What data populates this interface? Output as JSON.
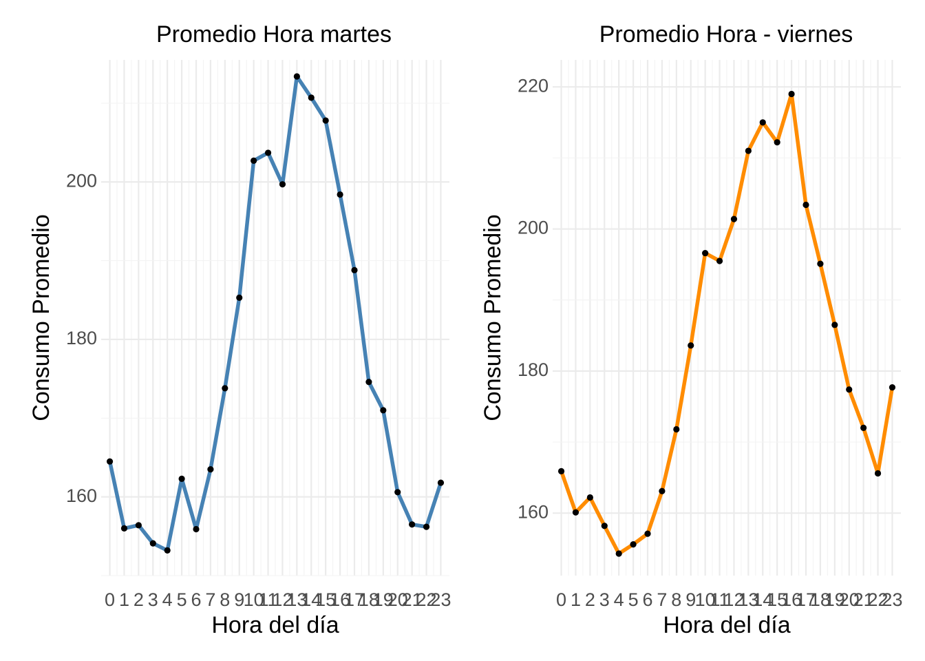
{
  "chart_data": [
    {
      "type": "line",
      "title": "Promedio Hora martes",
      "xlabel": "Hora del día",
      "ylabel": "Consumo Promedio",
      "x": [
        0,
        1,
        2,
        3,
        4,
        5,
        6,
        7,
        8,
        9,
        10,
        11,
        12,
        13,
        14,
        15,
        16,
        17,
        18,
        19,
        20,
        21,
        22,
        23
      ],
      "x_tick_labels": [
        "0",
        "1",
        "2",
        "3",
        "4",
        "5",
        "6",
        "7",
        "8",
        "9",
        "10",
        "11",
        "12",
        "13",
        "14",
        "15",
        "16",
        "17",
        "18",
        "19",
        "20",
        "21",
        "22",
        "23"
      ],
      "values": [
        164.5,
        156.0,
        156.4,
        154.1,
        153.2,
        162.3,
        155.9,
        163.5,
        173.8,
        185.3,
        202.7,
        203.7,
        199.7,
        213.4,
        210.7,
        207.8,
        198.4,
        188.8,
        174.6,
        171.0,
        160.6,
        156.5,
        156.2,
        161.8
      ],
      "ylim": [
        150,
        215.5
      ],
      "y_ticks": [
        160,
        180,
        200
      ],
      "line_color": "#4682b4",
      "point_color": "#000000",
      "grid": true
    },
    {
      "type": "line",
      "title": "Promedio Hora - viernes",
      "xlabel": "Hora del día",
      "ylabel": "Consumo Promedio",
      "x": [
        0,
        1,
        2,
        3,
        4,
        5,
        6,
        7,
        8,
        9,
        10,
        11,
        12,
        13,
        14,
        15,
        16,
        17,
        18,
        19,
        20,
        21,
        22,
        23
      ],
      "x_tick_labels": [
        "0",
        "1",
        "2",
        "3",
        "4",
        "5",
        "6",
        "7",
        "8",
        "9",
        "10",
        "11",
        "12",
        "13",
        "14",
        "15",
        "16",
        "17",
        "18",
        "19",
        "20",
        "21",
        "22",
        "23"
      ],
      "values": [
        165.9,
        160.1,
        162.2,
        158.2,
        154.3,
        155.6,
        157.1,
        163.1,
        171.8,
        183.6,
        196.6,
        195.5,
        201.4,
        211.0,
        215.0,
        212.2,
        219.0,
        203.4,
        195.1,
        186.5,
        177.4,
        172.0,
        165.6,
        177.7
      ],
      "ylim": [
        151.2,
        223.8
      ],
      "y_ticks": [
        160,
        180,
        200,
        220
      ],
      "line_color": "#ff8c00",
      "point_color": "#000000",
      "grid": true
    }
  ]
}
